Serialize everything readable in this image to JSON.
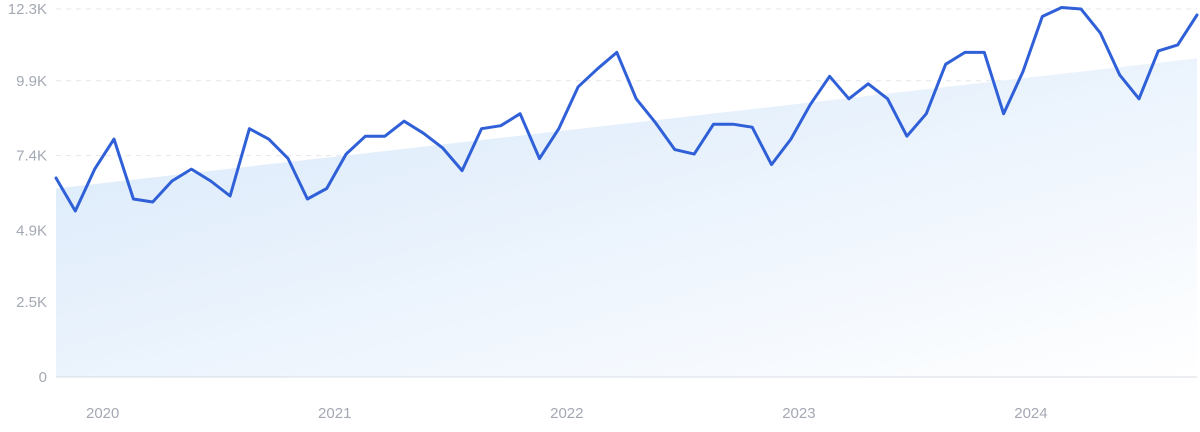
{
  "chart_data": {
    "type": "line",
    "title": "",
    "xlabel": "",
    "ylabel": "",
    "ylim": [
      0,
      12300
    ],
    "y_ticks": [
      {
        "value": 0,
        "label": "0"
      },
      {
        "value": 2500,
        "label": "2.5K"
      },
      {
        "value": 4900,
        "label": "4.9K"
      },
      {
        "value": 7400,
        "label": "7.4K"
      },
      {
        "value": 9900,
        "label": "9.9K"
      },
      {
        "value": 12300,
        "label": "12.3K"
      }
    ],
    "x_ticks": [
      {
        "value": "2020-01",
        "label": "2020"
      },
      {
        "value": "2021-01",
        "label": "2021"
      },
      {
        "value": "2022-01",
        "label": "2022"
      },
      {
        "value": "2023-01",
        "label": "2023"
      },
      {
        "value": "2024-01",
        "label": "2024"
      }
    ],
    "grid": true,
    "legend": "none",
    "line_color": "#3060d8",
    "trend_fill_color": "#d6e7fa",
    "series": [
      {
        "x": [
          "2019-11",
          "2019-12",
          "2020-01",
          "2020-02",
          "2020-03",
          "2020-04",
          "2020-05",
          "2020-06",
          "2020-07",
          "2020-08",
          "2020-09",
          "2020-10",
          "2020-11",
          "2020-12",
          "2021-01",
          "2021-02",
          "2021-03",
          "2021-04",
          "2021-05",
          "2021-06",
          "2021-07",
          "2021-08",
          "2021-09",
          "2021-10",
          "2021-11",
          "2021-12",
          "2022-01",
          "2022-02",
          "2022-03",
          "2022-04",
          "2022-05",
          "2022-06",
          "2022-07",
          "2022-08",
          "2022-09",
          "2022-10",
          "2022-11",
          "2022-12",
          "2023-01",
          "2023-02",
          "2023-03",
          "2023-04",
          "2023-05",
          "2023-06",
          "2023-07",
          "2023-08",
          "2023-09",
          "2023-10",
          "2023-11",
          "2023-12",
          "2024-01",
          "2024-02",
          "2024-03",
          "2024-04",
          "2024-05",
          "2024-06",
          "2024-07",
          "2024-08",
          "2024-09",
          "2024-10"
        ],
        "values": [
          6650,
          5550,
          6950,
          7950,
          5950,
          5850,
          6550,
          6950,
          6550,
          6050,
          8300,
          7950,
          7300,
          5950,
          6300,
          7450,
          8050,
          8050,
          8550,
          8150,
          7650,
          6900,
          8300,
          8400,
          8800,
          7300,
          8300,
          9700,
          10300,
          10850,
          9300,
          8500,
          7600,
          7450,
          8450,
          8450,
          8350,
          7100,
          7950,
          9100,
          10050,
          9300,
          9800,
          9300,
          8050,
          8800,
          10450,
          10850,
          10850,
          8800,
          10200,
          12050,
          12350,
          12300,
          11500,
          10100,
          9300,
          10900,
          11100,
          12100
        ]
      }
    ],
    "trend": {
      "start_value": 6300,
      "end_value": 10650
    }
  }
}
